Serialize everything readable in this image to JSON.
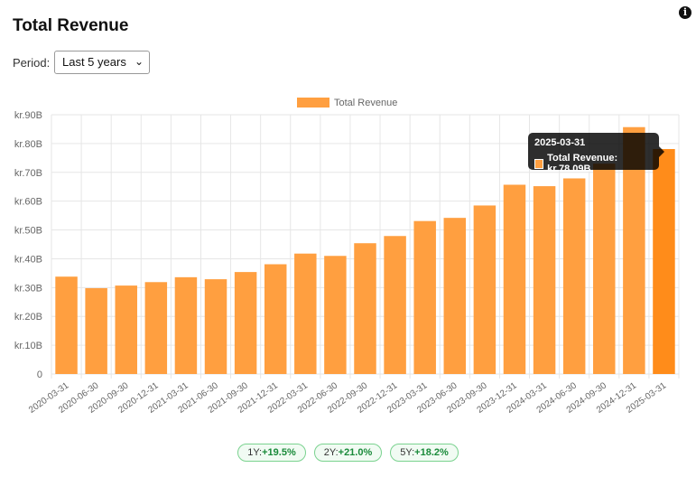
{
  "header": {
    "title": "Total Revenue",
    "info_icon": "info-icon"
  },
  "period": {
    "label": "Period:",
    "selected": "Last 5 years"
  },
  "tooltip": {
    "date": "2025-03-31",
    "label": "Total Revenue: kr.78.09B"
  },
  "growth": [
    {
      "label": "1Y:",
      "value": "+19.5%"
    },
    {
      "label": "2Y:",
      "value": "+21.0%"
    },
    {
      "label": "5Y:",
      "value": "+18.2%"
    }
  ],
  "colors": {
    "bar": "#ff9f40",
    "bar_highlight": "#ff8c1a",
    "grid": "#e6e6e6"
  },
  "chart_data": {
    "type": "bar",
    "legend": {
      "label": "Total Revenue",
      "position": "top"
    },
    "categories": [
      "2020-03-31",
      "2020-06-30",
      "2020-09-30",
      "2020-12-31",
      "2021-03-31",
      "2021-06-30",
      "2021-09-30",
      "2021-12-31",
      "2022-03-31",
      "2022-06-30",
      "2022-09-30",
      "2022-12-31",
      "2023-03-31",
      "2023-06-30",
      "2023-09-30",
      "2023-12-31",
      "2024-03-31",
      "2024-06-30",
      "2024-09-30",
      "2024-12-31",
      "2025-03-31"
    ],
    "values": [
      33.8,
      29.8,
      30.7,
      31.9,
      33.6,
      32.9,
      35.4,
      38.1,
      41.8,
      41.0,
      45.4,
      47.9,
      53.1,
      54.2,
      58.5,
      65.7,
      65.2,
      67.9,
      73.0,
      85.7,
      78.09
    ],
    "unit": "B",
    "ylim": [
      0,
      90
    ],
    "yticks": [
      "0",
      "kr.10B",
      "kr.20B",
      "kr.30B",
      "kr.40B",
      "kr.50B",
      "kr.60B",
      "kr.70B",
      "kr.80B",
      "kr.90B"
    ],
    "grid": true,
    "highlight_index": 20
  }
}
